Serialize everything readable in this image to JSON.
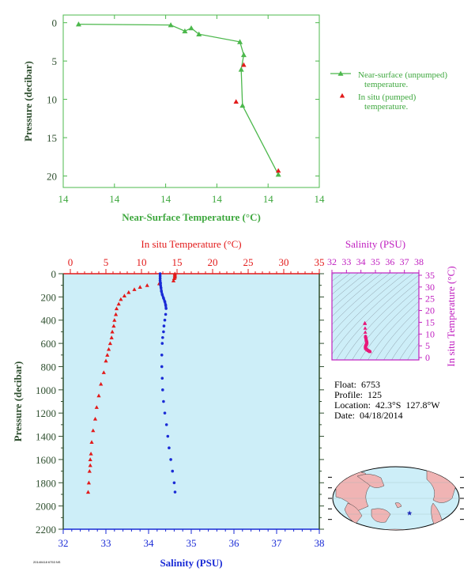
{
  "colors": {
    "green": "#4cb84c",
    "green_label": "#3fa83f",
    "axis_dark": "#2f4f2f",
    "red": "#e21a1a",
    "blue": "#1a2bd6",
    "magenta": "#c020c0",
    "pink": "#e8187a",
    "panel_bg": "#cdeef8",
    "land": "#f0b4b4",
    "ocean": "#cdeef8"
  },
  "info": {
    "float_line": "Float:  6753",
    "profile_line": "Profile:  125",
    "location_line": "Location:  42.3°S  127.8°W",
    "date_line": "Date:  04/18/2014"
  },
  "credit": "20140418 6753 NS",
  "chart_data": [
    {
      "id": "near-surface",
      "type": "line",
      "xlabel": "Near-Surface Temperature (°C)",
      "ylabel": "Pressure (decibar)",
      "x_tick_labels": [
        "14",
        "14",
        "14",
        "14",
        "14",
        "14"
      ],
      "xlim": [
        0,
        10
      ],
      "y_ticks": [
        0,
        5,
        10,
        15,
        20
      ],
      "ylim": [
        21.5,
        -1
      ],
      "series": [
        {
          "name": "Near-surface (unpumped) temperature.",
          "marker": "triangle",
          "x": [
            0.6,
            4.2,
            4.75,
            5.0,
            5.3,
            6.9,
            7.05,
            6.95,
            7.0,
            8.4
          ],
          "y": [
            0.2,
            0.3,
            1.1,
            0.7,
            1.5,
            2.5,
            4.2,
            6.1,
            10.8,
            19.8
          ]
        },
        {
          "name": "In situ (pumped) temperature.",
          "marker": "triangle",
          "x": [
            6.75,
            7.05,
            8.4
          ],
          "y": [
            10.3,
            5.5,
            19.3
          ]
        }
      ]
    },
    {
      "id": "profile",
      "type": "scatter",
      "title_top": "In situ Temperature (°C)",
      "xlabel": "Salinity (PSU)",
      "ylabel": "Pressure (decibar)",
      "temp_ticks": [
        0,
        5,
        10,
        15,
        20,
        25,
        30,
        35
      ],
      "temp_lim": [
        -1,
        35
      ],
      "sal_ticks": [
        32,
        33,
        34,
        35,
        36,
        37,
        38
      ],
      "sal_lim": [
        32,
        38
      ],
      "y_ticks": [
        0,
        200,
        400,
        600,
        800,
        1000,
        1200,
        1400,
        1600,
        1800,
        2000,
        2200
      ],
      "ylim": [
        2200,
        0
      ],
      "series": [
        {
          "name": "temperature",
          "axis": "temperature",
          "x": [
            14.7,
            14.7,
            14.7,
            14.7,
            14.6,
            14.5,
            12.5,
            10.8,
            9.8,
            9.0,
            8.2,
            7.6,
            7.1,
            6.8,
            6.5,
            6.4,
            6.2,
            6.1,
            5.9,
            5.8,
            5.6,
            5.4,
            5.2,
            5.0,
            4.7,
            4.3,
            4.0,
            3.7,
            3.5,
            3.2,
            3.0,
            2.9,
            2.8,
            2.8,
            2.7,
            2.6,
            2.5
          ],
          "y": [
            0,
            10,
            20,
            30,
            40,
            60,
            85,
            100,
            115,
            135,
            160,
            190,
            220,
            260,
            300,
            350,
            400,
            450,
            500,
            550,
            600,
            650,
            700,
            750,
            850,
            950,
            1050,
            1150,
            1250,
            1350,
            1450,
            1550,
            1600,
            1650,
            1700,
            1800,
            1880
          ]
        },
        {
          "name": "salinity",
          "axis": "salinity",
          "x": [
            34.27,
            34.27,
            34.27,
            34.27,
            34.28,
            34.28,
            34.29,
            34.3,
            34.32,
            34.35,
            34.38,
            34.4,
            34.41,
            34.4,
            34.38,
            34.36,
            34.35,
            34.33,
            34.32,
            34.31,
            34.31,
            34.32,
            34.33,
            34.35,
            34.38,
            34.42,
            34.45,
            34.48,
            34.52,
            34.56,
            34.6,
            34.62
          ],
          "y": [
            0,
            20,
            40,
            60,
            80,
            100,
            120,
            150,
            180,
            210,
            240,
            270,
            300,
            350,
            400,
            450,
            500,
            550,
            600,
            700,
            800,
            900,
            1000,
            1100,
            1200,
            1300,
            1400,
            1500,
            1600,
            1700,
            1800,
            1880
          ]
        }
      ]
    },
    {
      "id": "ts-diagram",
      "type": "scatter",
      "title_top": "Salinity (PSU)",
      "ylabel_right": "In situ Temperature (°C)",
      "sal_ticks": [
        32,
        33,
        34,
        35,
        36,
        37,
        38
      ],
      "sal_lim": [
        32,
        38
      ],
      "temp_ticks": [
        0,
        5,
        10,
        15,
        20,
        25,
        30,
        35
      ],
      "temp_lim": [
        -1,
        36
      ],
      "series": [
        {
          "name": "T-S",
          "x": [
            34.27,
            34.28,
            34.29,
            34.3,
            34.32,
            34.36,
            34.4,
            34.41,
            34.38,
            34.35,
            34.32,
            34.31,
            34.32,
            34.35,
            34.42,
            34.5,
            34.58,
            34.62,
            34.27
          ],
          "y": [
            14.7,
            14.5,
            12.5,
            10.8,
            9.0,
            7.6,
            6.8,
            6.2,
            5.8,
            5.4,
            5.0,
            4.6,
            4.2,
            3.8,
            3.4,
            3.0,
            2.8,
            2.6,
            14.7
          ]
        }
      ]
    },
    {
      "id": "location-map",
      "type": "scatter",
      "series": [
        {
          "name": "float-position",
          "x": [
            -127.8
          ],
          "y": [
            -42.3
          ]
        }
      ]
    }
  ]
}
